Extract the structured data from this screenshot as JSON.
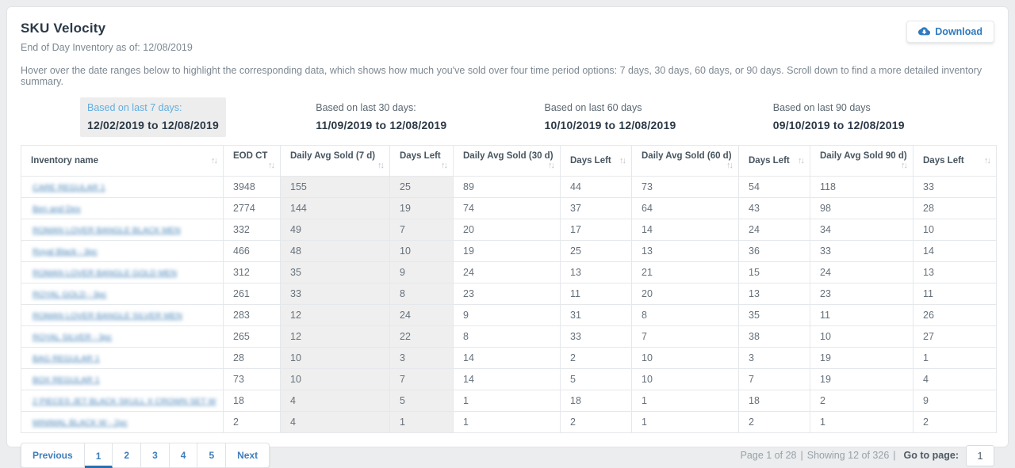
{
  "header": {
    "title": "SKU Velocity",
    "subtitle": "End of Day Inventory as of: 12/08/2019",
    "description": "Hover over the date ranges below to highlight the corresponding data, which shows how much you've sold over four time period options: 7 days, 30 days, 60 days, or 90 days. Scroll down to find a more detailed inventory summary.",
    "download_label": "Download"
  },
  "colors": {
    "accent_blue": "#2f7abf",
    "highlight_gray": "#ededed",
    "title_navy": "#2b3947",
    "range_hover_blue": "#63aede"
  },
  "icons": {
    "download_icon": "cloud-download",
    "sort_icon": "↑↓"
  },
  "date_ranges": [
    {
      "days": "7",
      "label": "Based on last 7 days:",
      "range": "12/02/2019 to 12/08/2019",
      "highlighted": true
    },
    {
      "days": "30",
      "label": "Based on last 30 days:",
      "range": "11/09/2019 to 12/08/2019",
      "highlighted": false
    },
    {
      "days": "60",
      "label": "Based on last 60 days",
      "range": "10/10/2019 to 12/08/2019",
      "highlighted": false
    },
    {
      "days": "90",
      "label": "Based on last 90 days",
      "range": "09/10/2019 to 12/08/2019",
      "highlighted": false
    }
  ],
  "table": {
    "columns": [
      "Inventory name",
      "EOD CT",
      "Daily Avg Sold (7 d)",
      "Days Left",
      "Daily Avg Sold (30 d)",
      "Days Left",
      "Daily Avg Sold (60 d)",
      "Days Left",
      "Daily Avg Sold 90 d)",
      "Days Left"
    ],
    "names_blurred": true,
    "highlight_value_columns": [
      1,
      2
    ],
    "rows": [
      {
        "name": "CARE REGULAR 1",
        "values": [
          3948,
          155,
          25,
          89,
          44,
          73,
          54,
          118,
          33
        ]
      },
      {
        "name": "Ben and Dex",
        "values": [
          2774,
          144,
          19,
          74,
          37,
          64,
          43,
          98,
          28
        ]
      },
      {
        "name": "ROMAN LOVER BANGLE BLACK MEN",
        "values": [
          332,
          49,
          7,
          20,
          17,
          14,
          24,
          34,
          10
        ]
      },
      {
        "name": "Royal Black - 3pc",
        "values": [
          466,
          48,
          10,
          19,
          25,
          13,
          36,
          33,
          14
        ]
      },
      {
        "name": "ROMAN LOVER BANGLE GOLD MEN",
        "values": [
          312,
          35,
          9,
          24,
          13,
          21,
          15,
          24,
          13
        ]
      },
      {
        "name": "ROYAL GOLD - 3pc",
        "values": [
          261,
          33,
          8,
          23,
          11,
          20,
          13,
          23,
          11
        ]
      },
      {
        "name": "ROMAN LOVER BANGLE SILVER MEN",
        "values": [
          283,
          12,
          24,
          9,
          31,
          8,
          35,
          11,
          26
        ]
      },
      {
        "name": "ROYAL SILVER - 3pc",
        "values": [
          265,
          12,
          22,
          8,
          33,
          7,
          38,
          10,
          27
        ]
      },
      {
        "name": "BAG REGULAR 1",
        "values": [
          28,
          10,
          3,
          14,
          2,
          10,
          3,
          19,
          1
        ]
      },
      {
        "name": "BOX REGULAR 1",
        "values": [
          73,
          10,
          7,
          14,
          5,
          10,
          7,
          19,
          4
        ]
      },
      {
        "name": "2 PIECES JET BLACK SKULL X CROWN SET W",
        "values": [
          18,
          4,
          5,
          1,
          18,
          1,
          18,
          2,
          9
        ]
      },
      {
        "name": "MINIMAL BLACK W - 2pc",
        "values": [
          2,
          4,
          1,
          1,
          2,
          1,
          2,
          1,
          2
        ]
      }
    ]
  },
  "pagination": {
    "previous_label": "Previous",
    "pages": [
      "1",
      "2",
      "3",
      "4",
      "5"
    ],
    "active_page": "1",
    "next_label": "Next",
    "page_summary": "Page 1 of 28",
    "separator": "|",
    "showing_summary": "Showing 12 of 326",
    "goto_label": "Go to page:",
    "goto_value": "1"
  }
}
